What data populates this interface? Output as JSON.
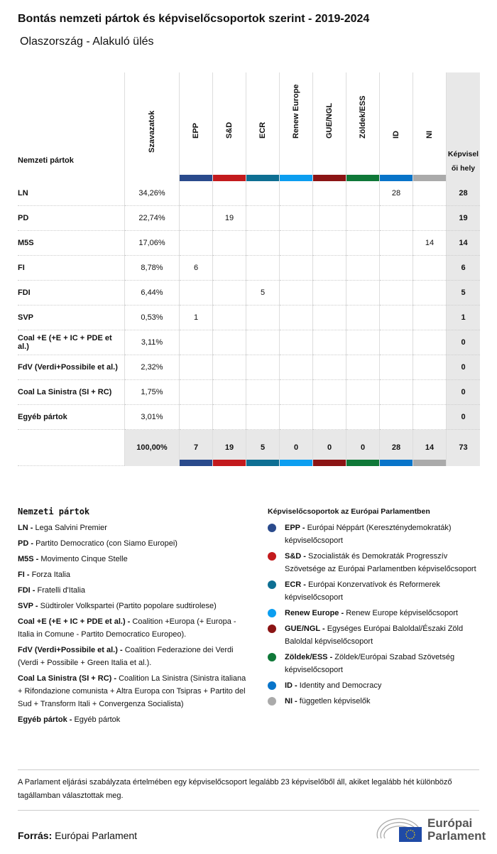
{
  "title": "Bontás nemzeti pártok és képviselőcsoportok szerint - 2019-2024",
  "subtitle": "Olaszország - Alakuló ülés",
  "chart_data": {
    "type": "table",
    "header": {
      "party": "Nemzeti pártok",
      "votes": "Szavazatok",
      "seats": "Képviselői hely"
    },
    "groups": [
      {
        "name": "EPP",
        "color": "#2a4a8c"
      },
      {
        "name": "S&D",
        "color": "#c31a1d"
      },
      {
        "name": "ECR",
        "color": "#0e6f93"
      },
      {
        "name": "Renew Europe",
        "color": "#0c9ef0"
      },
      {
        "name": "GUE/NGL",
        "color": "#8b1414"
      },
      {
        "name": "Zöldek/ESS",
        "color": "#0f7838"
      },
      {
        "name": "ID",
        "color": "#0874c9"
      },
      {
        "name": "NI",
        "color": "#aaaaaa"
      }
    ],
    "rows": [
      {
        "party": "LN",
        "votes": "34,26%",
        "seats": [
          "",
          "",
          "",
          "",
          "",
          "",
          "28",
          ""
        ],
        "total": "28"
      },
      {
        "party": "PD",
        "votes": "22,74%",
        "seats": [
          "",
          "19",
          "",
          "",
          "",
          "",
          "",
          ""
        ],
        "total": "19"
      },
      {
        "party": "M5S",
        "votes": "17,06%",
        "seats": [
          "",
          "",
          "",
          "",
          "",
          "",
          "",
          "14"
        ],
        "total": "14"
      },
      {
        "party": "FI",
        "votes": "8,78%",
        "seats": [
          "6",
          "",
          "",
          "",
          "",
          "",
          "",
          ""
        ],
        "total": "6"
      },
      {
        "party": "FDI",
        "votes": "6,44%",
        "seats": [
          "",
          "",
          "5",
          "",
          "",
          "",
          "",
          ""
        ],
        "total": "5"
      },
      {
        "party": "SVP",
        "votes": "0,53%",
        "seats": [
          "1",
          "",
          "",
          "",
          "",
          "",
          "",
          ""
        ],
        "total": "1"
      },
      {
        "party": "Coal +E (+E + IC + PDE et al.)",
        "votes": "3,11%",
        "seats": [
          "",
          "",
          "",
          "",
          "",
          "",
          "",
          ""
        ],
        "total": "0"
      },
      {
        "party": "FdV (Verdi+Possibile et al.)",
        "votes": "2,32%",
        "seats": [
          "",
          "",
          "",
          "",
          "",
          "",
          "",
          ""
        ],
        "total": "0"
      },
      {
        "party": "Coal La Sinistra (SI + RC)",
        "votes": "1,75%",
        "seats": [
          "",
          "",
          "",
          "",
          "",
          "",
          "",
          ""
        ],
        "total": "0"
      },
      {
        "party": "Egyéb pártok",
        "votes": "3,01%",
        "seats": [
          "",
          "",
          "",
          "",
          "",
          "",
          "",
          ""
        ],
        "total": "0"
      }
    ],
    "totals": {
      "votes": "100,00%",
      "seats": [
        "7",
        "19",
        "5",
        "0",
        "0",
        "0",
        "28",
        "14"
      ],
      "total": "73"
    }
  },
  "legend_left": {
    "title": "Nemzeti pártok",
    "items": [
      {
        "abbr": "LN - ",
        "text": "Lega Salvini Premier"
      },
      {
        "abbr": "PD - ",
        "text": "Partito Democratico (con Siamo Europei)"
      },
      {
        "abbr": "M5S - ",
        "text": "Movimento Cinque Stelle"
      },
      {
        "abbr": "FI - ",
        "text": "Forza Italia"
      },
      {
        "abbr": "FDI - ",
        "text": "Fratelli d'Italia"
      },
      {
        "abbr": "SVP - ",
        "text": "Südtiroler Volkspartei (Partito popolare sudtirolese)"
      },
      {
        "abbr": "Coal +E (+E + IC + PDE et al.) - ",
        "text": "Coalition +Europa (+ Europa - Italia in Comune - Partito Democratico Europeo)."
      },
      {
        "abbr": "FdV (Verdi+Possibile et al.) - ",
        "text": "Coalition Federazione dei Verdi (Verdi + Possibile + Green Italia et al.)."
      },
      {
        "abbr": "Coal La Sinistra (SI + RC) - ",
        "text": "Coalition La Sinistra (Sinistra italiana + Rifondazione comunista + Altra Europa con Tsipras + Partito del Sud + Transform Itali + Convergenza Socialista)"
      },
      {
        "abbr": "Egyéb pártok - ",
        "text": "Egyéb pártok"
      }
    ]
  },
  "legend_right": {
    "title": "Képviselőcsoportok az Európai Parlamentben",
    "items": [
      {
        "abbr": "EPP - ",
        "text": "Európai Néppárt (Kereszténydemokraták) képviselőcsoport",
        "color": "#2a4a8c"
      },
      {
        "abbr": "S&D - ",
        "text": "Szocialisták és Demokraták Progresszív Szövetsége az Európai Parlamentben képviselőcsoport",
        "color": "#c31a1d"
      },
      {
        "abbr": "ECR - ",
        "text": "Európai Konzervatívok és Reformerek képviselőcsoport",
        "color": "#0e6f93"
      },
      {
        "abbr": "Renew Europe - ",
        "text": "Renew Europe képviselőcsoport",
        "color": "#0c9ef0"
      },
      {
        "abbr": "GUE/NGL - ",
        "text": "Egységes Európai Baloldal/Északi Zöld Baloldal képviselőcsoport",
        "color": "#8b1414"
      },
      {
        "abbr": "Zöldek/ESS - ",
        "text": "Zöldek/Európai Szabad Szövetség képviselőcsoport",
        "color": "#0f7838"
      },
      {
        "abbr": "ID - ",
        "text": "Identity and Democracy",
        "color": "#0874c9"
      },
      {
        "abbr": "NI - ",
        "text": "független képviselők",
        "color": "#aaaaaa"
      }
    ]
  },
  "note": "A Parlament eljárási szabályzata értelmében egy képviselőcsoport legalább 23 képviselőből áll, akiket legalább hét különböző tagállamban választottak meg.",
  "source_label": "Forrás:",
  "source": "Európai Parlament",
  "logo_text": [
    "Európai",
    "Parlament"
  ]
}
